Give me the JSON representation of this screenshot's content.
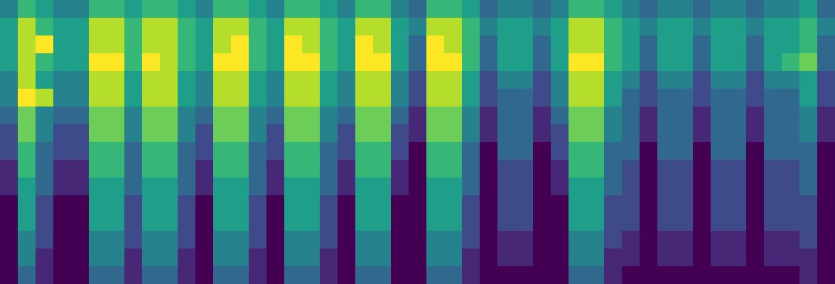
{
  "chart_data": {
    "type": "heatmap",
    "color": "viridis",
    "tick_labels": false,
    "zlim": [
      0,
      9
    ],
    "cells": [
      [
        4,
        6,
        5,
        4,
        4,
        6,
        6,
        5,
        6,
        6,
        5,
        4,
        6,
        6,
        5,
        4,
        6,
        6,
        5,
        4,
        6,
        6,
        4,
        3,
        6,
        6,
        5,
        3,
        4,
        4,
        3,
        4,
        6,
        6,
        5,
        4,
        3,
        4,
        4,
        3,
        4,
        4,
        3,
        4,
        4,
        5,
        3
      ],
      [
        5,
        8,
        6,
        5,
        5,
        8,
        8,
        6,
        8,
        8,
        6,
        5,
        8,
        8,
        6,
        5,
        8,
        8,
        6,
        5,
        8,
        8,
        5,
        4,
        8,
        8,
        6,
        4,
        5,
        5,
        4,
        5,
        8,
        8,
        6,
        5,
        4,
        5,
        5,
        4,
        5,
        5,
        4,
        5,
        5,
        6,
        4
      ],
      [
        5,
        8,
        9,
        5,
        5,
        8,
        8,
        6,
        8,
        8,
        6,
        5,
        8,
        9,
        6,
        5,
        9,
        8,
        6,
        5,
        9,
        8,
        5,
        3,
        9,
        8,
        6,
        3,
        5,
        5,
        3,
        5,
        8,
        8,
        6,
        5,
        3,
        5,
        5,
        3,
        5,
        5,
        3,
        5,
        5,
        6,
        3
      ],
      [
        5,
        8,
        6,
        5,
        5,
        9,
        9,
        6,
        9,
        8,
        6,
        5,
        9,
        9,
        6,
        5,
        9,
        9,
        6,
        5,
        9,
        9,
        5,
        3,
        9,
        9,
        6,
        3,
        5,
        5,
        3,
        5,
        9,
        9,
        6,
        5,
        3,
        5,
        5,
        3,
        5,
        5,
        3,
        5,
        6,
        7,
        3
      ],
      [
        4,
        8,
        5,
        4,
        4,
        8,
        8,
        5,
        8,
        8,
        5,
        4,
        8,
        8,
        5,
        4,
        8,
        8,
        5,
        4,
        8,
        8,
        4,
        2,
        8,
        8,
        5,
        2,
        4,
        4,
        2,
        4,
        8,
        8,
        5,
        4,
        2,
        4,
        4,
        2,
        4,
        4,
        2,
        4,
        4,
        5,
        2
      ],
      [
        4,
        9,
        8,
        4,
        4,
        8,
        8,
        5,
        8,
        8,
        5,
        4,
        8,
        8,
        5,
        4,
        8,
        8,
        5,
        4,
        8,
        8,
        4,
        2,
        8,
        8,
        5,
        2,
        3,
        3,
        2,
        4,
        8,
        8,
        5,
        3,
        2,
        3,
        3,
        2,
        3,
        3,
        2,
        3,
        3,
        5,
        2
      ],
      [
        3,
        7,
        4,
        3,
        3,
        7,
        7,
        4,
        7,
        7,
        4,
        3,
        7,
        7,
        4,
        3,
        7,
        7,
        4,
        3,
        7,
        7,
        3,
        1,
        7,
        7,
        4,
        1,
        3,
        3,
        1,
        3,
        7,
        7,
        4,
        3,
        1,
        3,
        3,
        1,
        3,
        3,
        1,
        3,
        3,
        4,
        1
      ],
      [
        2,
        7,
        4,
        2,
        2,
        7,
        7,
        4,
        7,
        7,
        4,
        2,
        7,
        7,
        4,
        2,
        7,
        7,
        4,
        2,
        7,
        7,
        2,
        1,
        7,
        7,
        4,
        1,
        3,
        3,
        1,
        2,
        7,
        7,
        4,
        3,
        1,
        3,
        3,
        1,
        3,
        3,
        1,
        3,
        3,
        4,
        1
      ],
      [
        2,
        6,
        3,
        2,
        2,
        6,
        6,
        3,
        6,
        6,
        3,
        2,
        6,
        6,
        3,
        2,
        6,
        6,
        3,
        2,
        6,
        6,
        2,
        0,
        6,
        6,
        3,
        0,
        3,
        3,
        0,
        2,
        6,
        6,
        3,
        3,
        0,
        3,
        3,
        0,
        3,
        3,
        0,
        3,
        3,
        3,
        0
      ],
      [
        1,
        6,
        3,
        1,
        1,
        6,
        6,
        3,
        6,
        6,
        3,
        1,
        6,
        6,
        3,
        1,
        6,
        6,
        3,
        1,
        6,
        6,
        1,
        0,
        6,
        6,
        3,
        0,
        2,
        2,
        0,
        1,
        6,
        6,
        3,
        2,
        0,
        2,
        2,
        0,
        2,
        2,
        0,
        2,
        2,
        3,
        0
      ],
      [
        1,
        5,
        3,
        1,
        1,
        5,
        5,
        3,
        5,
        5,
        3,
        1,
        5,
        5,
        3,
        1,
        5,
        5,
        3,
        1,
        5,
        5,
        1,
        0,
        5,
        5,
        3,
        0,
        2,
        2,
        0,
        1,
        5,
        5,
        3,
        2,
        0,
        2,
        2,
        0,
        2,
        2,
        0,
        2,
        2,
        3,
        0
      ],
      [
        0,
        5,
        2,
        0,
        0,
        5,
        5,
        2,
        5,
        5,
        2,
        0,
        5,
        5,
        2,
        0,
        5,
        5,
        2,
        0,
        5,
        5,
        0,
        0,
        5,
        5,
        2,
        0,
        2,
        2,
        0,
        0,
        5,
        5,
        2,
        2,
        0,
        2,
        2,
        0,
        2,
        2,
        0,
        2,
        2,
        2,
        0
      ],
      [
        0,
        5,
        2,
        0,
        0,
        5,
        5,
        2,
        5,
        5,
        2,
        0,
        5,
        5,
        2,
        0,
        5,
        5,
        2,
        0,
        5,
        5,
        0,
        0,
        5,
        5,
        2,
        0,
        2,
        2,
        0,
        0,
        5,
        5,
        2,
        2,
        0,
        2,
        2,
        0,
        2,
        2,
        0,
        2,
        2,
        2,
        0
      ],
      [
        0,
        4,
        2,
        0,
        0,
        4,
        4,
        2,
        4,
        4,
        2,
        0,
        4,
        4,
        2,
        0,
        4,
        4,
        2,
        0,
        4,
        4,
        0,
        0,
        4,
        4,
        2,
        0,
        1,
        1,
        0,
        0,
        4,
        4,
        2,
        1,
        0,
        1,
        1,
        0,
        1,
        1,
        0,
        1,
        1,
        2,
        0
      ],
      [
        0,
        4,
        1,
        0,
        0,
        4,
        4,
        1,
        4,
        4,
        1,
        0,
        4,
        4,
        1,
        0,
        4,
        4,
        1,
        0,
        4,
        4,
        0,
        0,
        4,
        4,
        1,
        0,
        1,
        1,
        0,
        0,
        4,
        4,
        1,
        1,
        0,
        1,
        1,
        0,
        1,
        1,
        0,
        1,
        1,
        1,
        0
      ],
      [
        0,
        3,
        1,
        0,
        0,
        3,
        3,
        1,
        3,
        3,
        1,
        0,
        3,
        3,
        1,
        0,
        3,
        3,
        1,
        0,
        3,
        3,
        0,
        0,
        3,
        3,
        1,
        0,
        0,
        0,
        0,
        0,
        3,
        3,
        1,
        0,
        0,
        0,
        0,
        0,
        0,
        0,
        0,
        0,
        0,
        1,
        0
      ]
    ]
  }
}
